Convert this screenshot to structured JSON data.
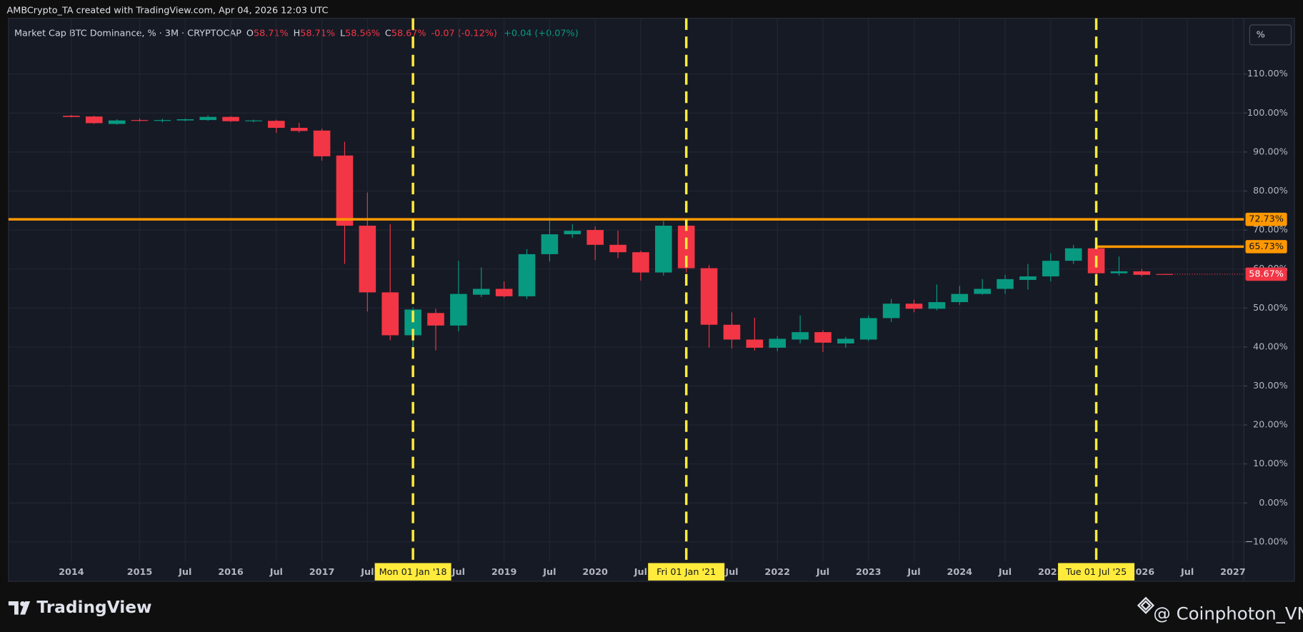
{
  "header": {
    "credit": "AMBCrypto_TA created with TradingView.com, Apr 04, 2026 12:03 UTC",
    "symbol": "Market Cap BTC Dominance, % · 3M · CRYPTOCAP",
    "o_label": "O",
    "o": "58.71%",
    "h_label": "H",
    "h": "58.71%",
    "l_label": "L",
    "l": "58.56%",
    "c_label": "C",
    "c": "58.67%",
    "change": "-0.07 (-0.12%)",
    "change2": "+0.04 (+0.07%)",
    "scale_button": "%"
  },
  "footer": {
    "logo": "TradingView",
    "watermark": "@ Coinphoton_VN"
  },
  "chart_data": {
    "type": "candlestick",
    "up_color": "#089981",
    "down_color": "#f23645",
    "grid": true,
    "x": [
      2014.25,
      2014.5,
      2014.75,
      2015.0,
      2015.25,
      2015.5,
      2015.75,
      2016.0,
      2016.25,
      2016.5,
      2016.75,
      2017.0,
      2017.25,
      2017.5,
      2017.75,
      2018.0,
      2018.25,
      2018.5,
      2018.75,
      2019.0,
      2019.25,
      2019.5,
      2019.75,
      2020.0,
      2020.25,
      2020.5,
      2020.75,
      2021.0,
      2021.25,
      2021.5,
      2021.75,
      2022.0,
      2022.25,
      2022.5,
      2022.75,
      2023.0,
      2023.25,
      2023.5,
      2023.75,
      2024.0,
      2024.25,
      2024.5,
      2024.75,
      2025.0,
      2025.25,
      2025.5,
      2025.75,
      2026.0,
      2026.25
    ],
    "open": [
      99.3,
      99.1,
      97.2,
      98.2,
      98.0,
      98.1,
      98.2,
      99.0,
      97.9,
      98.0,
      96.2,
      95.5,
      89.1,
      71.1,
      54.0,
      43.0,
      48.7,
      45.5,
      53.4,
      54.9,
      53.0,
      63.8,
      68.9,
      70.0,
      66.2,
      64.3,
      59.1,
      71.1,
      60.2,
      45.7,
      41.9,
      39.8,
      41.9,
      43.8,
      40.9,
      41.9,
      47.4,
      51.1,
      49.8,
      51.5,
      53.6,
      54.9,
      57.2,
      58.1,
      62.1,
      65.3,
      58.9,
      59.4,
      58.71
    ],
    "high": [
      99.5,
      99.3,
      98.4,
      98.6,
      98.5,
      98.6,
      99.4,
      99.2,
      98.3,
      98.3,
      97.5,
      96.0,
      92.6,
      79.6,
      71.5,
      50.2,
      49.8,
      62.1,
      60.4,
      56.8,
      65.1,
      73.2,
      71.5,
      70.9,
      69.8,
      64.7,
      72.3,
      73.0,
      61.0,
      48.9,
      47.5,
      42.8,
      48.1,
      44.3,
      42.6,
      48.1,
      52.3,
      52.1,
      56.0,
      55.7,
      57.4,
      58.5,
      61.3,
      64.0,
      66.2,
      65.73,
      63.2,
      60.0,
      58.71
    ],
    "low": [
      98.9,
      97.2,
      97.0,
      97.8,
      97.6,
      97.9,
      98.0,
      97.7,
      97.6,
      94.9,
      95.0,
      87.8,
      61.3,
      49.1,
      41.7,
      38.5,
      39.1,
      44.0,
      52.8,
      52.6,
      52.3,
      61.9,
      68.0,
      62.3,
      62.8,
      57.0,
      58.3,
      59.1,
      39.8,
      39.6,
      39.1,
      38.9,
      40.9,
      38.7,
      39.8,
      41.5,
      46.4,
      48.9,
      49.4,
      50.8,
      53.4,
      53.6,
      54.7,
      56.8,
      61.3,
      56.8,
      58.3,
      58.1,
      58.56
    ],
    "close": [
      99.0,
      97.4,
      98.1,
      98.0,
      98.2,
      98.4,
      99.0,
      97.9,
      98.1,
      96.2,
      95.4,
      88.9,
      71.1,
      54.0,
      43.0,
      49.6,
      45.5,
      53.6,
      54.9,
      53.0,
      63.8,
      68.9,
      69.8,
      66.2,
      64.3,
      59.1,
      71.1,
      60.2,
      45.7,
      41.9,
      39.8,
      42.1,
      43.8,
      41.1,
      42.1,
      47.4,
      51.1,
      49.8,
      51.5,
      53.6,
      54.9,
      57.4,
      58.1,
      62.1,
      65.3,
      58.9,
      59.4,
      58.5,
      58.67
    ],
    "xlim": [
      2013.56,
      2027.12
    ],
    "ylim": [
      -15,
      124.3
    ],
    "xticks": [
      {
        "value": 2014.25,
        "label": "2014"
      },
      2015,
      {
        "value": 2015.5,
        "label": "Jul"
      },
      2016,
      {
        "value": 2016.5,
        "label": "Jul"
      },
      2017,
      {
        "value": 2017.5,
        "label": "Jul"
      },
      {
        "value": 2018.5,
        "label": "Jul"
      },
      2019,
      {
        "value": 2019.5,
        "label": "Jul"
      },
      2020,
      {
        "value": 2020.5,
        "label": "Jul"
      },
      {
        "value": 2021.5,
        "label": "Jul"
      },
      2022,
      {
        "value": 2022.5,
        "label": "Jul"
      },
      2023,
      {
        "value": 2023.5,
        "label": "Jul"
      },
      2024,
      {
        "value": 2024.5,
        "label": "Jul"
      },
      2025,
      2026,
      {
        "value": 2026.5,
        "label": "Jul"
      },
      2027
    ],
    "yticks": [
      {
        "value": 110,
        "label": "110.00%"
      },
      {
        "value": 100,
        "label": "100.00%"
      },
      {
        "value": 90,
        "label": "90.00%"
      },
      {
        "value": 80,
        "label": "80.00%"
      },
      {
        "value": 70,
        "label": "70.00%"
      },
      {
        "value": 60,
        "label": "60.00%"
      },
      {
        "value": 50,
        "label": "50.00%"
      },
      {
        "value": 40,
        "label": "40.00%"
      },
      {
        "value": 30,
        "label": "30.00%"
      },
      {
        "value": 20,
        "label": "20.00%"
      },
      {
        "value": 10,
        "label": "10.00%"
      },
      {
        "value": 0,
        "label": "0.00%"
      },
      {
        "value": -10,
        "label": "−10.00%"
      }
    ],
    "levels": [
      {
        "value": 72.73,
        "label": "72.73%",
        "from": 2013.56,
        "color": "#ff9800"
      },
      {
        "value": 65.73,
        "label": "65.73%",
        "from": 2025.5,
        "color": "#ff9800"
      }
    ],
    "last_price": {
      "value": 58.67,
      "label": "58.67%",
      "color": "#f23645"
    },
    "markers": [
      {
        "x": 2018.0,
        "label": "Mon 01 Jan '18"
      },
      {
        "x": 2021.0,
        "label": "Fri 01 Jan '21"
      },
      {
        "x": 2025.5,
        "label": "Tue 01 Jul '25"
      }
    ],
    "marker_color": "#ffeb3b"
  }
}
